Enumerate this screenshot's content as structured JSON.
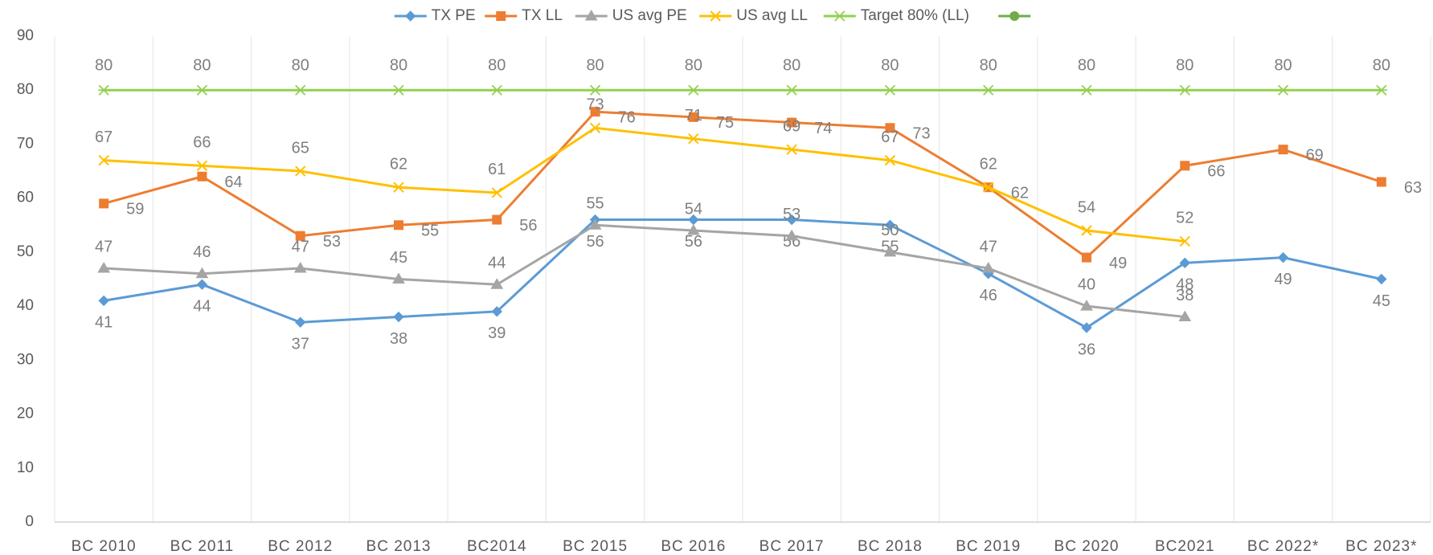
{
  "chart_data": {
    "type": "line",
    "categories": [
      "BC 2010",
      "BC 2011",
      "BC 2012",
      "BC 2013",
      "BC2014",
      "BC 2015",
      "BC 2016",
      "BC 2017",
      "BC 2018",
      "BC 2019",
      "BC 2020",
      "BC2021",
      "BC 2022*",
      "BC 2023*"
    ],
    "series": [
      {
        "name": "TX PE",
        "color": "#5b9bd5",
        "marker": "diamond",
        "values": [
          41,
          44,
          37,
          38,
          39,
          56,
          56,
          56,
          55,
          46,
          36,
          48,
          49,
          45
        ]
      },
      {
        "name": "TX LL",
        "color": "#ed7d31",
        "marker": "square",
        "values": [
          59,
          64,
          53,
          55,
          56,
          76,
          75,
          74,
          73,
          62,
          49,
          66,
          69,
          63
        ]
      },
      {
        "name": "US avg PE",
        "color": "#a5a5a5",
        "marker": "triangle",
        "values": [
          47,
          46,
          47,
          45,
          44,
          55,
          54,
          53,
          50,
          47,
          40,
          38,
          null,
          null
        ]
      },
      {
        "name": "US avg LL",
        "color": "#ffc000",
        "marker": "x",
        "values": [
          67,
          66,
          65,
          62,
          61,
          73,
          71,
          69,
          67,
          62,
          54,
          52,
          null,
          null
        ]
      },
      {
        "name": "Target 80% (LL)",
        "color": "#92d050",
        "marker": "star",
        "values": [
          80,
          80,
          80,
          80,
          80,
          80,
          80,
          80,
          80,
          80,
          80,
          80,
          80,
          80
        ]
      }
    ],
    "ylim": [
      0,
      90
    ],
    "yticks": [
      0,
      10,
      20,
      30,
      40,
      50,
      60,
      70,
      80,
      90
    ],
    "grid": "x",
    "legend": "top",
    "data_labels": true
  }
}
